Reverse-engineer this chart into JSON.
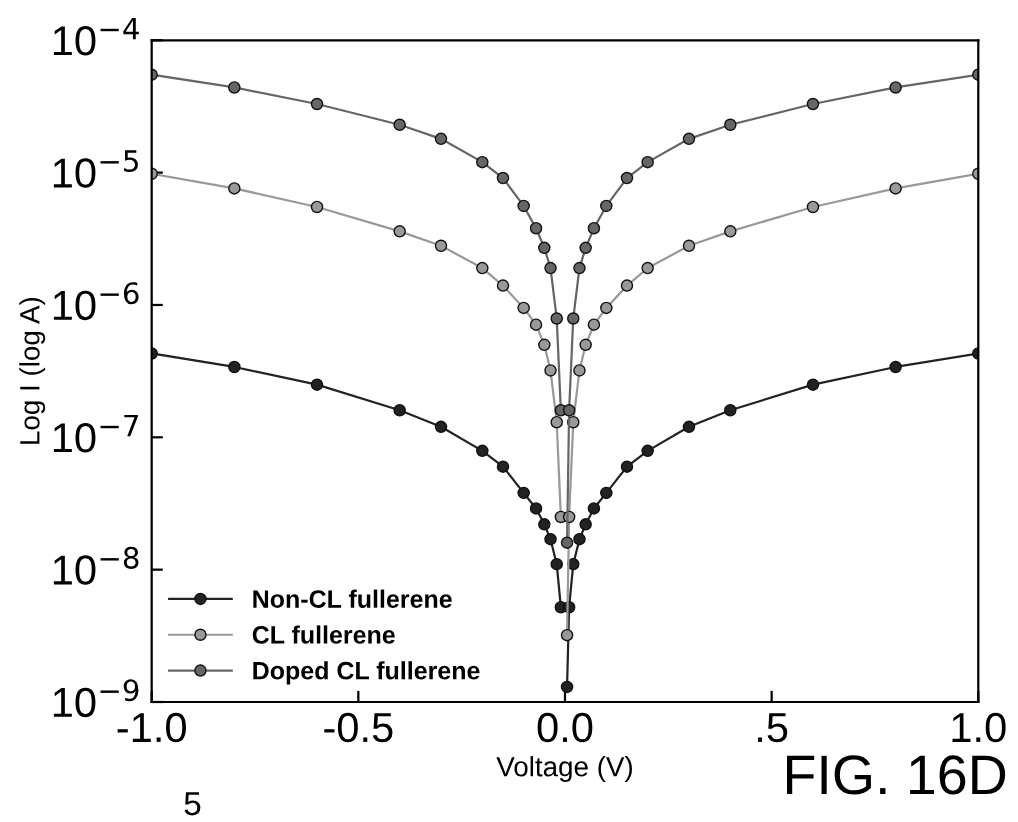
{
  "chart_data": {
    "type": "line",
    "xlabel": "Voltage (V)",
    "ylabel": "Log I (log A)",
    "log": "y",
    "x": [
      -1,
      -0.8,
      -0.6,
      -0.4,
      -0.3,
      -0.2,
      -0.15,
      -0.1,
      -0.07,
      -0.05,
      -0.035,
      -0.02,
      -0.01,
      -0.005,
      0.005,
      0.01,
      0.02,
      0.035,
      0.05,
      0.07,
      0.1,
      0.15,
      0.2,
      0.3,
      0.4,
      0.6,
      0.8,
      1
    ],
    "series": [
      {
        "name": "Non-CL fullerene",
        "color": "#222222",
        "values": [
          4.3e-07,
          3.4e-07,
          2.5e-07,
          1.6e-07,
          1.2e-07,
          7.9e-08,
          6e-08,
          3.8e-08,
          2.9e-08,
          2.2e-08,
          1.7e-08,
          1.1e-08,
          5.2e-09,
          null,
          1.3e-09,
          5.2e-09,
          1.1e-08,
          1.7e-08,
          2.2e-08,
          2.9e-08,
          3.8e-08,
          6e-08,
          7.9e-08,
          1.2e-07,
          1.6e-07,
          2.5e-07,
          3.4e-07,
          4.3e-07
        ]
      },
      {
        "name": "CL fullerene",
        "color": "#999999",
        "values": [
          9.8e-06,
          7.6e-06,
          5.5e-06,
          3.6e-06,
          2.8e-06,
          1.9e-06,
          1.4e-06,
          9.5e-07,
          7.1e-07,
          5e-07,
          3.2e-07,
          1.3e-07,
          2.5e-08,
          null,
          3.2e-09,
          2.5e-08,
          1.3e-07,
          3.2e-07,
          5e-07,
          7.1e-07,
          9.5e-07,
          1.4e-06,
          1.9e-06,
          2.8e-06,
          3.6e-06,
          5.5e-06,
          7.6e-06,
          9.8e-06
        ]
      },
      {
        "name": "Doped CL fullerene",
        "color": "#666666",
        "values": [
          5.5e-05,
          4.4e-05,
          3.3e-05,
          2.3e-05,
          1.8e-05,
          1.2e-05,
          9.1e-06,
          5.6e-06,
          3.8e-06,
          2.7e-06,
          1.9e-06,
          7.9e-07,
          1.6e-07,
          null,
          1.6e-08,
          1.6e-07,
          7.9e-07,
          1.9e-06,
          2.7e-06,
          3.8e-06,
          5.6e-06,
          9.1e-06,
          1.2e-05,
          1.8e-05,
          2.3e-05,
          3.3e-05,
          4.4e-05,
          5.5e-05
        ]
      }
    ],
    "xlim": [
      -1,
      1
    ],
    "ylim": [
      1e-09,
      0.0001
    ],
    "xticks": [
      {
        "value": -1,
        "label": "-1.0"
      },
      {
        "value": -0.5,
        "label": "-0.5"
      },
      {
        "value": 0,
        "label": "0.0"
      },
      {
        "value": 0.5,
        "label": ".5"
      },
      {
        "value": 1,
        "label": "1.0"
      }
    ],
    "yticks": [
      {
        "value": 1e-09,
        "label": "10$^{−9}$"
      },
      {
        "value": 1e-08,
        "label": "10$^{−8}$"
      },
      {
        "value": 1e-07,
        "label": "10$^{−7}$"
      },
      {
        "value": 1e-06,
        "label": "10$^{−6}$"
      },
      {
        "value": 1e-05,
        "label": "10$^{−5}$"
      },
      {
        "value": 0.0001,
        "label": "10$^{−4}$"
      }
    ],
    "marker": "circle",
    "line_style": "solid",
    "legend": "bottom left",
    "grid": false,
    "annotations": [
      "FIG. 16D",
      "5"
    ]
  }
}
